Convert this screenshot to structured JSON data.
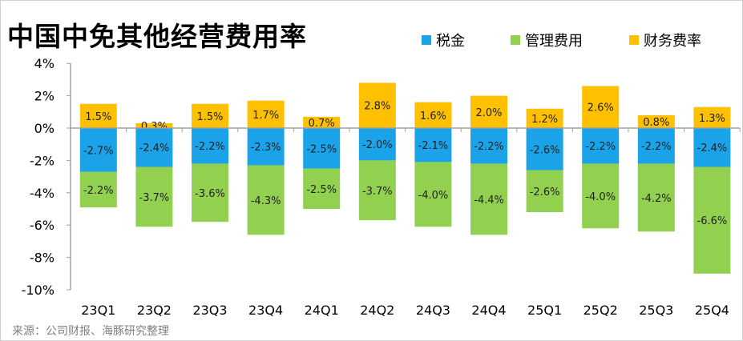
{
  "title": "中国中免其他经营费用率",
  "source": "来源：公司财报、海豚研究整理",
  "chart_data": {
    "type": "bar",
    "stacked": true,
    "title": "中国中免其他经营费用率",
    "categories": [
      "23Q1",
      "23Q2",
      "23Q3",
      "23Q4",
      "24Q1",
      "24Q2",
      "24Q3",
      "24Q4",
      "25Q1",
      "25Q2",
      "25Q3",
      "25Q4"
    ],
    "series": [
      {
        "name": "税金",
        "color": "#1AA3E8",
        "values": [
          -2.7,
          -2.4,
          -2.2,
          -2.3,
          -2.5,
          -2.0,
          -2.1,
          -2.2,
          -2.6,
          -2.2,
          -2.2,
          -2.4
        ]
      },
      {
        "name": "管理费用",
        "color": "#92D050",
        "values": [
          -2.2,
          -3.7,
          -3.6,
          -4.3,
          -2.5,
          -3.7,
          -4.0,
          -4.4,
          -2.6,
          -4.0,
          -4.2,
          -6.6
        ]
      },
      {
        "name": "财务费率",
        "color": "#FFC000",
        "values": [
          1.5,
          0.3,
          1.5,
          1.7,
          0.7,
          2.8,
          1.6,
          2.0,
          1.2,
          2.6,
          0.8,
          1.3
        ]
      }
    ],
    "yticks": [
      "4%",
      "2%",
      "0%",
      "-2%",
      "-4%",
      "-6%",
      "-8%",
      "-10%"
    ],
    "ylim": [
      -10,
      4
    ],
    "legend": "top-right",
    "grid": false,
    "unit": "%"
  }
}
